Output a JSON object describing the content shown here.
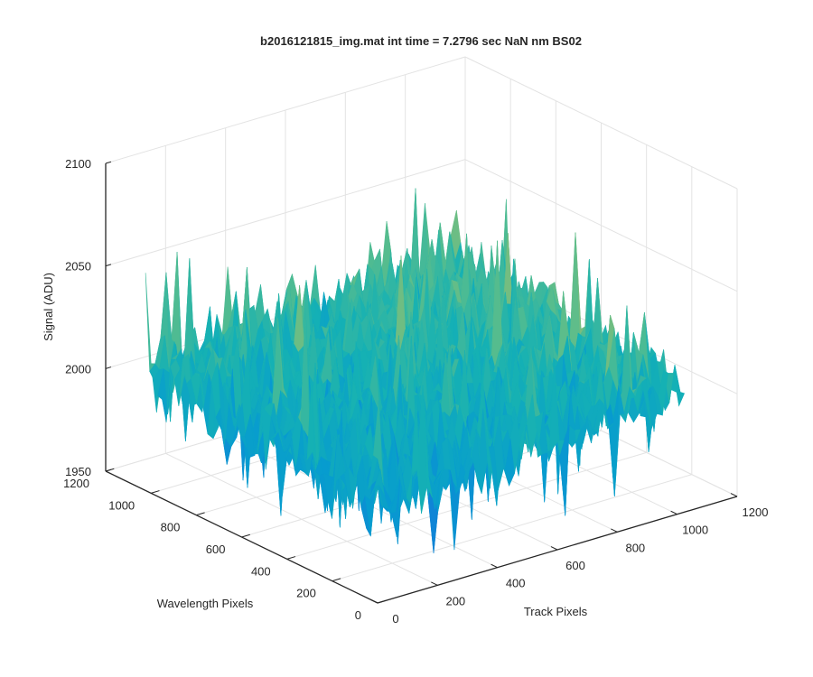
{
  "chart_data": {
    "type": "surface3d",
    "title": "b2016121815_img.mat int time = 7.2796 sec  NaN nm BS02",
    "xlabel": "Track Pixels",
    "ylabel": "Wavelength Pixels",
    "zlabel": "Signal (ADU)",
    "xlim": [
      0,
      1200
    ],
    "ylim": [
      0,
      1200
    ],
    "zlim": [
      1950,
      2100
    ],
    "x_ticks": [
      "0",
      "200",
      "400",
      "600",
      "800",
      "1000",
      "1200"
    ],
    "y_ticks": [
      "0",
      "200",
      "400",
      "600",
      "800",
      "1000",
      "1200"
    ],
    "z_ticks": [
      "1950",
      "2000",
      "2050",
      "2100"
    ],
    "surface_extent": {
      "x": [
        0,
        1024
      ],
      "y": [
        0,
        1024
      ]
    },
    "signal_mean": 2005,
    "signal_noise_range": [
      1955,
      2085
    ],
    "grid": true,
    "colormap": "parula"
  }
}
